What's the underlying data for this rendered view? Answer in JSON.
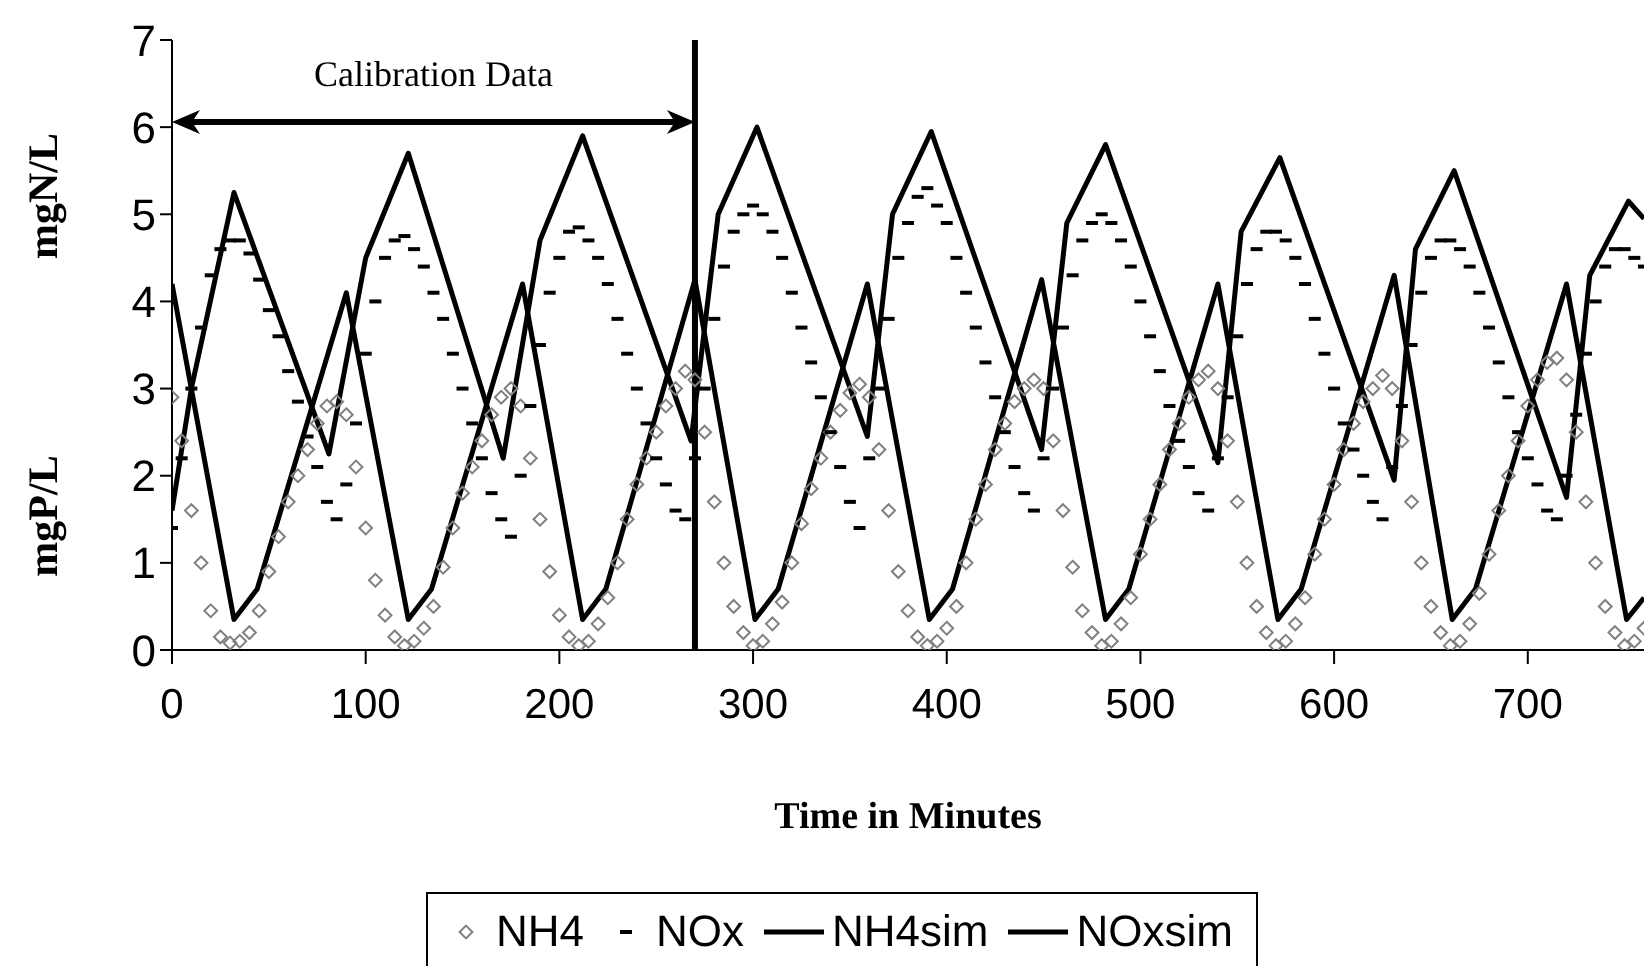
{
  "chart_data": {
    "type": "line",
    "xlabel": "Time in Minutes",
    "ylabel": "mgN/L",
    "annotations": [
      "mgP/L",
      "Calibration Data"
    ],
    "xlim": [
      0,
      760
    ],
    "xticks": [
      0,
      100,
      200,
      300,
      400,
      500,
      600,
      700
    ],
    "ylim": [
      0,
      7
    ],
    "yticks": [
      0,
      1,
      2,
      3,
      4,
      5,
      6,
      7
    ],
    "grid": false,
    "legend": "bottom",
    "ref_lines": [
      {
        "axis": "x",
        "value": 270,
        "color": "#000000"
      }
    ],
    "x": [
      0,
      5,
      10,
      15,
      20,
      25,
      30,
      35,
      40,
      45,
      50,
      55,
      60,
      65,
      70,
      75,
      80,
      85,
      90,
      95,
      100,
      105,
      110,
      115,
      120,
      125,
      130,
      135,
      140,
      145,
      150,
      155,
      160,
      165,
      170,
      175,
      180,
      185,
      190,
      195,
      200,
      205,
      210,
      215,
      220,
      225,
      230,
      235,
      240,
      245,
      250,
      255,
      260,
      265,
      270,
      275,
      280,
      285,
      290,
      295,
      300,
      305,
      310,
      315,
      320,
      325,
      330,
      335,
      340,
      345,
      350,
      355,
      360,
      365,
      370,
      375,
      380,
      385,
      390,
      395,
      400,
      405,
      410,
      415,
      420,
      425,
      430,
      435,
      440,
      445,
      450,
      455,
      460,
      465,
      470,
      475,
      480,
      485,
      490,
      495,
      500,
      505,
      510,
      515,
      520,
      525,
      530,
      535,
      540,
      545,
      550,
      555,
      560,
      565,
      570,
      575,
      580,
      585,
      590,
      595,
      600,
      605,
      610,
      615,
      620,
      625,
      630,
      635,
      640,
      645,
      650,
      655,
      660,
      665,
      670,
      675,
      680,
      685,
      690,
      695,
      700,
      705,
      710,
      715,
      720,
      725,
      730,
      735,
      740,
      745,
      750,
      755,
      760
    ],
    "series": [
      {
        "name": "NH4",
        "type": "scatter",
        "marker": "diamond",
        "color": "#808080",
        "values": [
          2.9,
          2.4,
          1.6,
          1.0,
          0.45,
          0.15,
          0.08,
          0.1,
          0.2,
          0.45,
          0.9,
          1.3,
          1.7,
          2.0,
          2.3,
          2.6,
          2.8,
          2.85,
          2.7,
          2.1,
          1.4,
          0.8,
          0.4,
          0.15,
          0.05,
          0.1,
          0.25,
          0.5,
          0.95,
          1.4,
          1.8,
          2.1,
          2.4,
          2.7,
          2.9,
          3.0,
          2.8,
          2.2,
          1.5,
          0.9,
          0.4,
          0.15,
          0.05,
          0.1,
          0.3,
          0.6,
          1.0,
          1.5,
          1.9,
          2.2,
          2.5,
          2.8,
          3.0,
          3.2,
          3.1,
          2.5,
          1.7,
          1.0,
          0.5,
          0.2,
          0.05,
          0.1,
          0.3,
          0.55,
          1.0,
          1.45,
          1.85,
          2.2,
          2.5,
          2.75,
          2.95,
          3.05,
          2.9,
          2.3,
          1.6,
          0.9,
          0.45,
          0.15,
          0.05,
          0.1,
          0.25,
          0.5,
          1.0,
          1.5,
          1.9,
          2.3,
          2.6,
          2.85,
          3.0,
          3.1,
          3.0,
          2.4,
          1.6,
          0.95,
          0.45,
          0.2,
          0.05,
          0.1,
          0.3,
          0.6,
          1.1,
          1.5,
          1.9,
          2.3,
          2.6,
          2.9,
          3.1,
          3.2,
          3.0,
          2.4,
          1.7,
          1.0,
          0.5,
          0.2,
          0.05,
          0.1,
          0.3,
          0.6,
          1.1,
          1.5,
          1.9,
          2.3,
          2.6,
          2.85,
          3.0,
          3.15,
          3.0,
          2.4,
          1.7,
          1.0,
          0.5,
          0.2,
          0.05,
          0.1,
          0.3,
          0.65,
          1.1,
          1.6,
          2.0,
          2.4,
          2.8,
          3.1,
          3.3,
          3.35,
          3.1,
          2.5,
          1.7,
          1.0,
          0.5,
          0.2,
          0.05,
          0.1,
          0.25
        ]
      },
      {
        "name": "NOx",
        "type": "scatter",
        "marker": "square",
        "color": "#000000",
        "values": [
          1.4,
          2.2,
          3.0,
          3.7,
          4.3,
          4.6,
          4.7,
          4.7,
          4.55,
          4.25,
          3.9,
          3.6,
          3.2,
          2.85,
          2.45,
          2.1,
          1.7,
          1.5,
          1.9,
          2.6,
          3.4,
          4.0,
          4.5,
          4.7,
          4.75,
          4.6,
          4.4,
          4.1,
          3.8,
          3.4,
          3.0,
          2.6,
          2.2,
          1.8,
          1.5,
          1.3,
          2.0,
          2.8,
          3.5,
          4.1,
          4.5,
          4.8,
          4.85,
          4.7,
          4.5,
          4.2,
          3.8,
          3.4,
          3.0,
          2.6,
          2.2,
          1.9,
          1.6,
          1.5,
          2.2,
          3.0,
          3.8,
          4.4,
          4.8,
          5.0,
          5.1,
          5.0,
          4.8,
          4.5,
          4.1,
          3.7,
          3.3,
          2.9,
          2.5,
          2.1,
          1.7,
          1.4,
          2.2,
          3.0,
          3.8,
          4.5,
          4.9,
          5.2,
          5.3,
          5.1,
          4.9,
          4.5,
          4.1,
          3.7,
          3.3,
          2.9,
          2.5,
          2.1,
          1.8,
          1.6,
          2.2,
          3.0,
          3.7,
          4.3,
          4.7,
          4.9,
          5.0,
          4.9,
          4.7,
          4.4,
          4.0,
          3.6,
          3.2,
          2.8,
          2.4,
          2.1,
          1.8,
          1.6,
          2.2,
          2.9,
          3.6,
          4.2,
          4.6,
          4.8,
          4.8,
          4.7,
          4.5,
          4.2,
          3.8,
          3.4,
          3.0,
          2.6,
          2.3,
          2.0,
          1.7,
          1.5,
          2.1,
          2.8,
          3.5,
          4.1,
          4.5,
          4.7,
          4.7,
          4.6,
          4.4,
          4.1,
          3.7,
          3.3,
          2.9,
          2.5,
          2.2,
          1.9,
          1.6,
          1.5,
          2.0,
          2.7,
          3.4,
          4.0,
          4.4,
          4.6,
          4.6,
          4.5,
          4.4
        ]
      },
      {
        "name": "NH4sim",
        "marker": "none",
        "line_style": "solid",
        "color": "#000000",
        "x": [
          0,
          32,
          44,
          90,
          122,
          134,
          181,
          212,
          224,
          270,
          301,
          313,
          359,
          391,
          403,
          449,
          482,
          494,
          540,
          571,
          583,
          631,
          661,
          673,
          720,
          751,
          760
        ],
        "values": [
          4.2,
          0.35,
          0.7,
          4.1,
          0.35,
          0.7,
          4.2,
          0.35,
          0.7,
          4.25,
          0.35,
          0.7,
          4.2,
          0.35,
          0.7,
          4.25,
          0.35,
          0.7,
          4.2,
          0.35,
          0.7,
          4.3,
          0.35,
          0.7,
          4.2,
          0.35,
          0.6
        ]
      },
      {
        "name": "NOxsim",
        "marker": "none",
        "line_style": "solid",
        "color": "#000000",
        "x": [
          0,
          10,
          32,
          81,
          100,
          122,
          171,
          190,
          212,
          268,
          282,
          302,
          359,
          372,
          392,
          449,
          462,
          482,
          540,
          552,
          572,
          631,
          642,
          662,
          720,
          732,
          752,
          760
        ],
        "values": [
          1.6,
          3.0,
          5.25,
          2.25,
          4.5,
          5.7,
          2.2,
          4.7,
          5.9,
          2.4,
          5.0,
          6.0,
          2.45,
          5.0,
          5.95,
          2.3,
          4.9,
          5.8,
          2.15,
          4.8,
          5.65,
          1.95,
          4.6,
          5.5,
          1.75,
          4.3,
          5.15,
          4.95
        ]
      }
    ]
  }
}
